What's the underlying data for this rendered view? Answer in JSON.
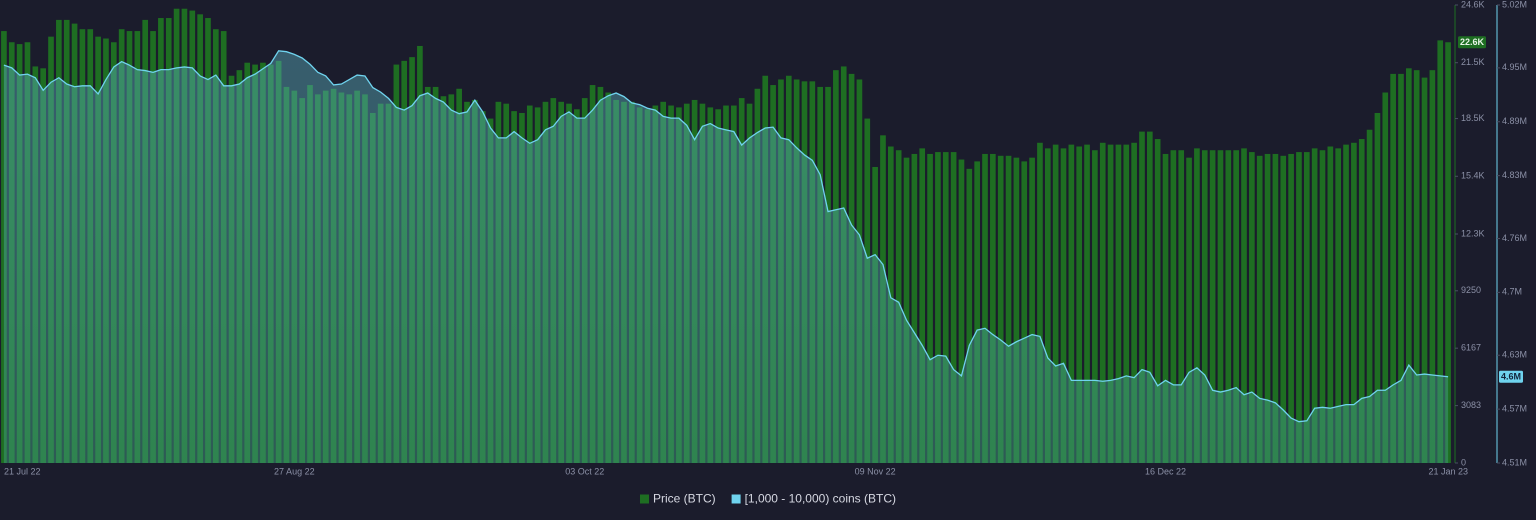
{
  "chart_data": {
    "type": "bar",
    "categories": [
      "21 Jul 22",
      null,
      null,
      null,
      null,
      null,
      null,
      null,
      null,
      null,
      null,
      null,
      null,
      null,
      null,
      null,
      null,
      null,
      null,
      null,
      null,
      null,
      null,
      null,
      null,
      null,
      null,
      null,
      null,
      null,
      null,
      null,
      null,
      null,
      null,
      null,
      null,
      "27 Aug 22",
      null,
      null,
      null,
      null,
      null,
      null,
      null,
      null,
      null,
      null,
      null,
      null,
      null,
      null,
      null,
      null,
      null,
      null,
      null,
      null,
      null,
      null,
      null,
      null,
      null,
      null,
      null,
      null,
      null,
      null,
      null,
      null,
      null,
      null,
      null,
      null,
      "03 Oct 22",
      null,
      null,
      null,
      null,
      null,
      null,
      null,
      null,
      null,
      null,
      null,
      null,
      null,
      null,
      null,
      null,
      null,
      null,
      null,
      null,
      null,
      null,
      null,
      null,
      null,
      null,
      null,
      null,
      null,
      null,
      null,
      null,
      null,
      null,
      null,
      null,
      "09 Nov 22",
      null,
      null,
      null,
      null,
      null,
      null,
      null,
      null,
      null,
      null,
      null,
      null,
      null,
      null,
      null,
      null,
      null,
      null,
      null,
      null,
      null,
      null,
      null,
      null,
      null,
      null,
      null,
      null,
      null,
      null,
      null,
      null,
      null,
      null,
      null,
      null,
      "16 Dec 22",
      null,
      null,
      null,
      null,
      null,
      null,
      null,
      null,
      null,
      null,
      null,
      null,
      null,
      null,
      null,
      null,
      null,
      null,
      null,
      null,
      null,
      null,
      null,
      null,
      null,
      null,
      null,
      null,
      null,
      null,
      null,
      null,
      null,
      null,
      null,
      "21 Jan 23"
    ],
    "series": [
      {
        "name": "Price (BTC)",
        "color": "#1e6e22",
        "last_label": "22.6K",
        "values": [
          23200,
          22600,
          22500,
          22600,
          21300,
          21200,
          22900,
          23800,
          23800,
          23600,
          23300,
          23300,
          22900,
          22800,
          22600,
          23300,
          23200,
          23200,
          23800,
          23200,
          23900,
          23900,
          24400,
          24400,
          24300,
          24100,
          23900,
          23300,
          23200,
          20800,
          21100,
          21500,
          21400,
          21500,
          21400,
          21600,
          20200,
          20000,
          19600,
          20300,
          19800,
          20000,
          20100,
          19900,
          19800,
          20000,
          19800,
          18800,
          19300,
          19300,
          21400,
          21600,
          21800,
          22400,
          20200,
          20200,
          19700,
          19800,
          20100,
          19400,
          19500,
          18900,
          18500,
          19400,
          19300,
          18900,
          18800,
          19200,
          19100,
          19400,
          19600,
          19400,
          19300,
          19000,
          19600,
          20300,
          20200,
          19900,
          19500,
          19400,
          19400,
          19100,
          19000,
          19200,
          19400,
          19200,
          19100,
          19300,
          19500,
          19300,
          19100,
          19000,
          19200,
          19200,
          19600,
          19300,
          20100,
          20800,
          20300,
          20600,
          20800,
          20600,
          20500,
          20500,
          20200,
          20200,
          21100,
          21300,
          20900,
          20600,
          18500,
          15900,
          17600,
          17000,
          16800,
          16400,
          16600,
          16900,
          16600,
          16700,
          16700,
          16700,
          16300,
          15800,
          16200,
          16600,
          16600,
          16500,
          16500,
          16400,
          16200,
          16400,
          17200,
          16900,
          17100,
          16900,
          17100,
          17000,
          17100,
          16800,
          17200,
          17100,
          17100,
          17100,
          17200,
          17800,
          17800,
          17400,
          16600,
          16800,
          16800,
          16400,
          16900,
          16800,
          16800,
          16800,
          16800,
          16800,
          16900,
          16700,
          16500,
          16600,
          16600,
          16500,
          16600,
          16700,
          16700,
          16900,
          16800,
          17000,
          16900,
          17100,
          17200,
          17400,
          17900,
          18800,
          19900,
          20900,
          20900,
          21200,
          21100,
          20700,
          21100,
          22700,
          22600
        ]
      },
      {
        "name": "[1,000 - 10,000) coins (BTC)",
        "color": "#6fd3ee",
        "type": "area",
        "axis": "y2",
        "last_label": "4.6M",
        "values": [
          4953000,
          4950000,
          4942000,
          4943000,
          4939000,
          4925000,
          4934000,
          4939000,
          4932000,
          4929000,
          4930000,
          4930000,
          4921000,
          4937000,
          4951000,
          4957000,
          4953000,
          4948000,
          4947000,
          4945000,
          4948000,
          4948000,
          4950000,
          4951000,
          4950000,
          4941000,
          4937000,
          4942000,
          4930000,
          4930000,
          4932000,
          4939000,
          4943000,
          4949000,
          4955000,
          4969000,
          4968000,
          4965000,
          4961000,
          4954000,
          4945000,
          4941000,
          4931000,
          4932000,
          4937000,
          4942000,
          4941000,
          4928000,
          4923000,
          4916000,
          4906000,
          4903000,
          4908000,
          4919000,
          4922000,
          4916000,
          4912000,
          4903000,
          4899000,
          4901000,
          4914000,
          4901000,
          4883000,
          4872000,
          4872000,
          4879000,
          4872000,
          4866000,
          4870000,
          4881000,
          4885000,
          4896000,
          4901000,
          4894000,
          4894000,
          4903000,
          4914000,
          4919000,
          4922000,
          4918000,
          4911000,
          4909000,
          4905000,
          4903000,
          4896000,
          4894000,
          4894000,
          4886000,
          4870000,
          4885000,
          4888000,
          4883000,
          4881000,
          4879000,
          4864000,
          4872000,
          4878000,
          4883000,
          4884000,
          4872000,
          4870000,
          4861000,
          4853000,
          4847000,
          4831000,
          4790000,
          4792000,
          4794000,
          4775000,
          4764000,
          4738000,
          4742000,
          4731000,
          4694000,
          4689000,
          4669000,
          4655000,
          4641000,
          4625000,
          4630000,
          4629000,
          4614000,
          4607000,
          4641000,
          4658000,
          4660000,
          4653000,
          4647000,
          4640000,
          4645000,
          4649000,
          4653000,
          4651000,
          4627000,
          4618000,
          4621000,
          4602000,
          4602000,
          4602000,
          4602000,
          4601000,
          4602000,
          4604000,
          4607000,
          4605000,
          4614000,
          4611000,
          4596000,
          4602000,
          4597000,
          4597000,
          4611000,
          4616000,
          4608000,
          4591000,
          4589000,
          4591000,
          4594000,
          4586000,
          4589000,
          4582000,
          4580000,
          4577000,
          4569000,
          4560000,
          4556000,
          4557000,
          4571000,
          4572000,
          4571000,
          4573000,
          4575000,
          4575000,
          4582000,
          4584000,
          4591000,
          4591000,
          4597000,
          4602000,
          4619000,
          4608000,
          4609000,
          4608000,
          4607000,
          4606000
        ]
      }
    ],
    "ylim": [
      0,
      24600
    ],
    "yticks": [
      0,
      3083,
      6167,
      9250,
      {
        "value": 12300,
        "label": "12.3K"
      },
      {
        "value": 15400,
        "label": "15.4K"
      },
      {
        "value": 18500,
        "label": "18.5K"
      },
      {
        "value": 21500,
        "label": "21.5K"
      },
      {
        "value": 24600,
        "label": "24.6K"
      }
    ],
    "y2lim": [
      4510000,
      5020000
    ],
    "y2ticks": [
      {
        "value": 4510000,
        "label": "4.51M"
      },
      {
        "value": 4570000,
        "label": "4.57M"
      },
      {
        "value": 4630000,
        "label": "4.63M"
      },
      {
        "value": 4700000,
        "label": "4.7M"
      },
      {
        "value": 4760000,
        "label": "4.76M"
      },
      {
        "value": 4830000,
        "label": "4.83M"
      },
      {
        "value": 4890000,
        "label": "4.89M"
      },
      {
        "value": 4950000,
        "label": "4.95M"
      },
      {
        "value": 5020000,
        "label": "5.02M"
      }
    ],
    "grid": false,
    "legend": "bottom"
  }
}
